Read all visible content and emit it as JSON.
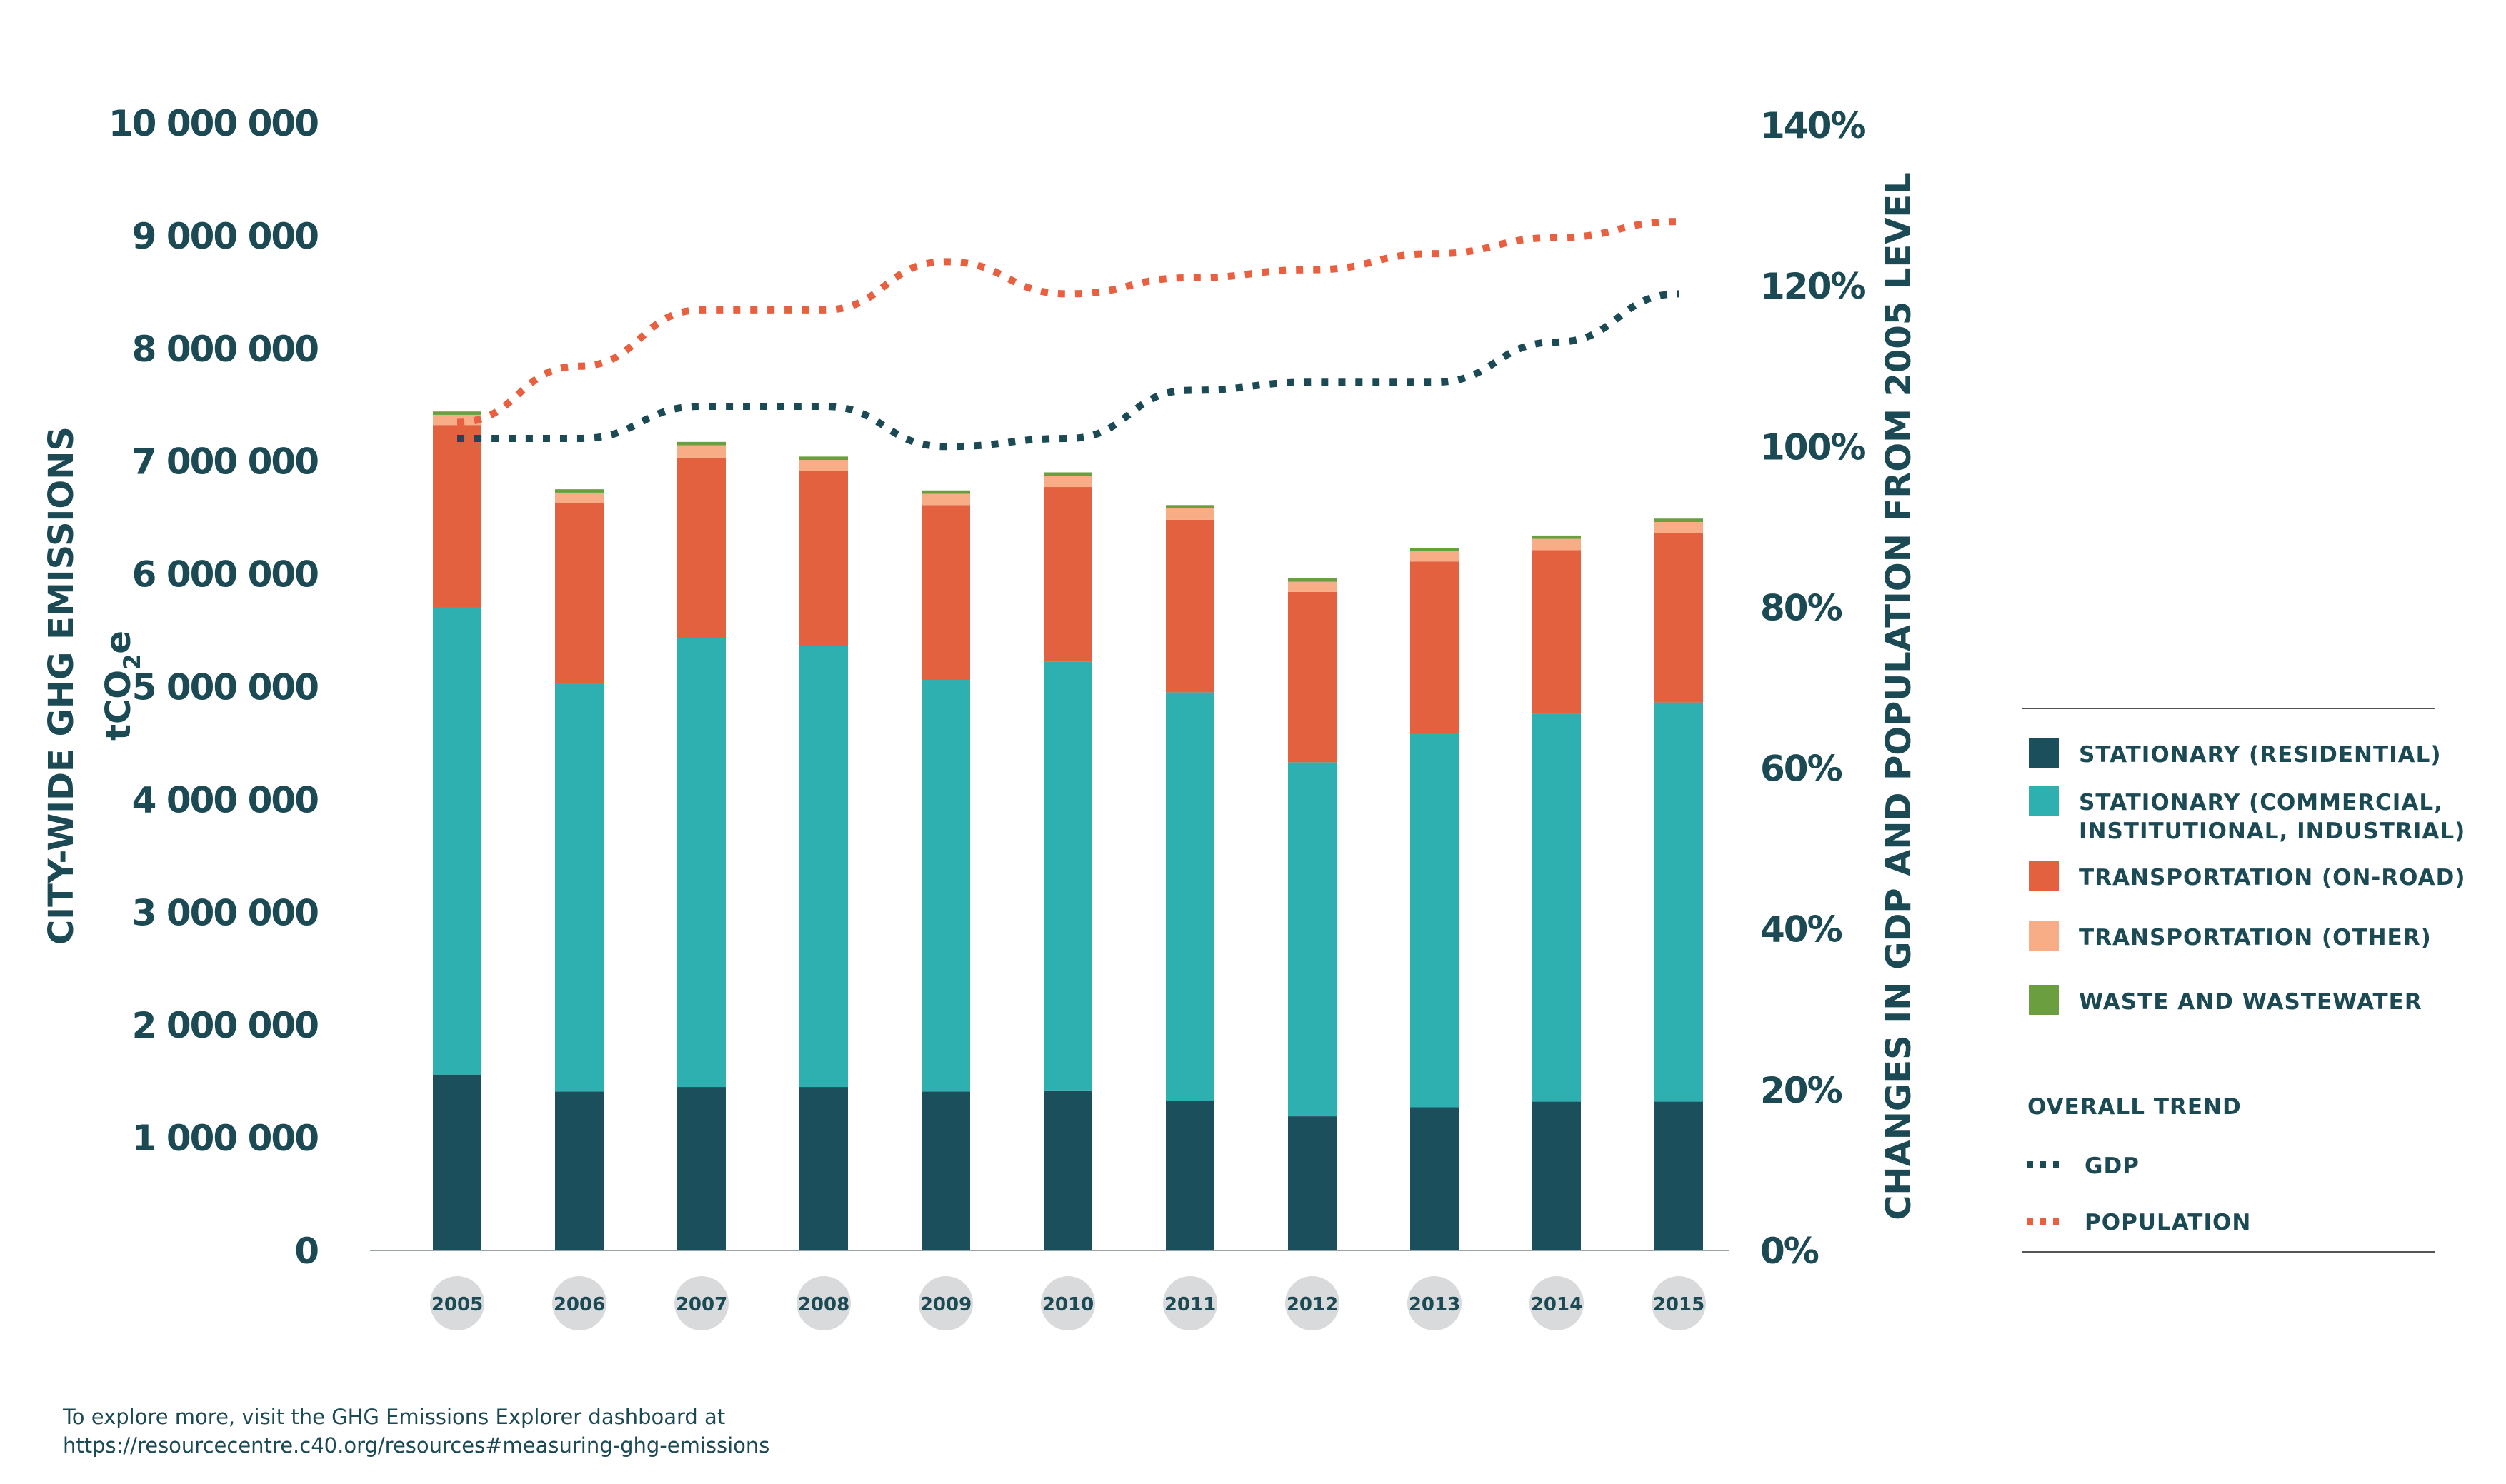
{
  "chart_data": {
    "type": "bar",
    "stacked": true,
    "categories": [
      "2005",
      "2006",
      "2007",
      "2008",
      "2009",
      "2010",
      "2011",
      "2012",
      "2013",
      "2014",
      "2015"
    ],
    "series": [
      {
        "name": "STATIONARY (RESIDENTIAL)",
        "color": "#1b4f5c",
        "values": [
          1560000,
          1410000,
          1450000,
          1450000,
          1410000,
          1420000,
          1330000,
          1190000,
          1270000,
          1320000,
          1320000
        ]
      },
      {
        "name": "STATIONARY (COMMERCIAL, INSTITUTIONAL, INDUSTRIAL)",
        "color": "#2eb0b0",
        "values": [
          4140000,
          3620000,
          3980000,
          3910000,
          3650000,
          3800000,
          3620000,
          3140000,
          3320000,
          3440000,
          3540000
        ]
      },
      {
        "name": "TRANSPORTATION (ON-ROAD)",
        "color": "#e3613f",
        "values": [
          1620000,
          1600000,
          1600000,
          1550000,
          1550000,
          1550000,
          1530000,
          1510000,
          1520000,
          1450000,
          1500000
        ]
      },
      {
        "name": "TRANSPORTATION (OTHER)",
        "color": "#f9ad86",
        "values": [
          90000,
          90000,
          110000,
          100000,
          100000,
          100000,
          100000,
          90000,
          90000,
          100000,
          100000
        ]
      },
      {
        "name": "WASTE AND WASTEWATER",
        "color": "#6a9e3f",
        "values": [
          30000,
          30000,
          30000,
          30000,
          30000,
          30000,
          30000,
          30000,
          30000,
          30000,
          30000
        ]
      }
    ],
    "trends": [
      {
        "name": "GDP",
        "color": "#1b4a55",
        "values": [
          101,
          101,
          105,
          105,
          100,
          101,
          107,
          108,
          108,
          113,
          119
        ]
      },
      {
        "name": "POPULATION",
        "color": "#e8603f",
        "values": [
          103,
          110,
          117,
          117,
          123,
          119,
          121,
          122,
          124,
          126,
          128
        ]
      }
    ],
    "ylabel_left": "CITY-WIDE GHG EMISSIONS",
    "ylabel_left_unit_main": "tCO",
    "ylabel_left_unit_sub": "2",
    "ylabel_left_unit_end": "e",
    "ylabel_right": "CHANGES IN GDP AND POPULATION FROM 2005 LEVEL",
    "ylim_left": [
      0,
      10000000
    ],
    "ylim_right": [
      0,
      140
    ],
    "yticks_left": [
      "0",
      "1 000 000",
      "2 000 000",
      "3 000 000",
      "4 000 000",
      "5 000 000",
      "6 000 000",
      "7 000 000",
      "8 000 000",
      "9 000 000",
      "10 000 000"
    ],
    "yticks_right": [
      "0%",
      "20%",
      "40%",
      "60%",
      "80%",
      "100%",
      "120%",
      "140%"
    ],
    "legend_trend_title": "OVERALL TREND",
    "legend_series_labels": [
      [
        "STATIONARY (RESIDENTIAL)"
      ],
      [
        "STATIONARY (COMMERCIAL,",
        "INSTITUTIONAL, INDUSTRIAL)"
      ],
      [
        "TRANSPORTATION (ON-ROAD)"
      ],
      [
        "TRANSPORTATION (OTHER)"
      ],
      [
        "WASTE AND WASTEWATER"
      ]
    ],
    "legend_position": "right"
  },
  "footer": {
    "line1": "To explore more, visit the GHG Emissions Explorer dashboard at",
    "line2": "https://resourcecentre.c40.org/resources#measuring-ghg-emissions"
  }
}
